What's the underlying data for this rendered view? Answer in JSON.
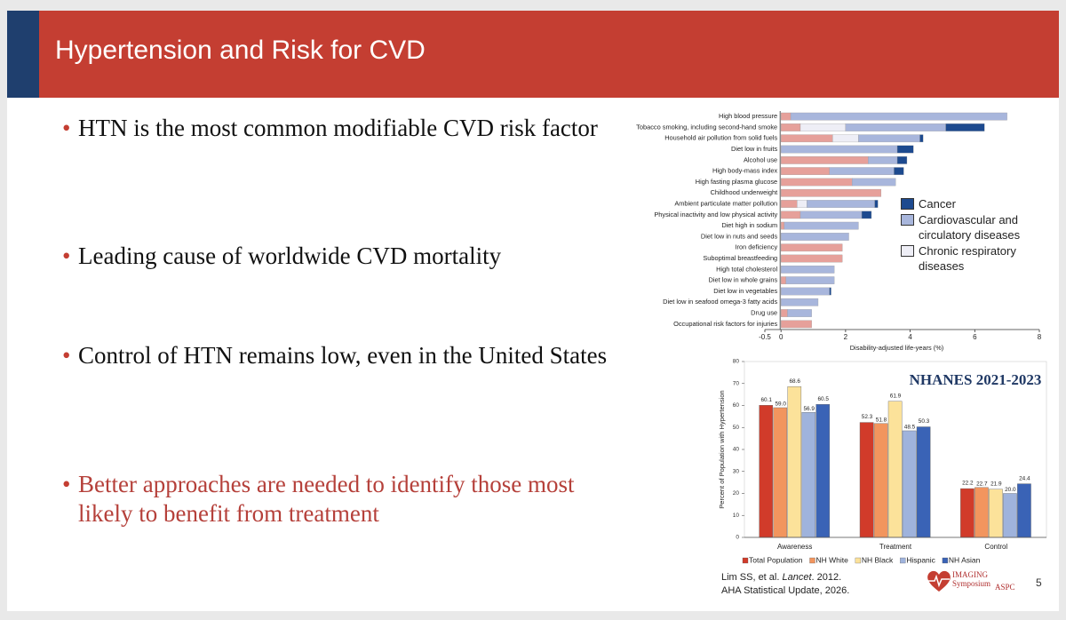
{
  "header": {
    "title": "Hypertension and Risk for CVD"
  },
  "bullets": [
    {
      "text": "HTN is the most common modifiable CVD risk factor"
    },
    {
      "text": "Leading cause of worldwide CVD mortality"
    },
    {
      "text": "Control of HTN remains low, even in the United States"
    },
    {
      "text": "Better approaches are needed to identify those most likely to benefit from treatment",
      "emphasis": true
    }
  ],
  "chart_data": [
    {
      "type": "bar",
      "orientation": "horizontal",
      "stacked": true,
      "xlabel": "Disability-adjusted life-years (%)",
      "categories": [
        "High blood pressure",
        "Tobacco smoking, including second-hand smoke",
        "Household air pollution from solid fuels",
        "Diet low in fruits",
        "Alcohol use",
        "High body-mass index",
        "High fasting plasma glucose",
        "Childhood underweight",
        "Ambient particulate matter pollution",
        "Physical inactivity and low physical activity",
        "Diet high in sodium",
        "Diet low in nuts and seeds",
        "Iron deficiency",
        "Suboptimal breastfeeding",
        "High total cholesterol",
        "Diet low in whole grains",
        "Diet low in vegetables",
        "Diet low in seafood omega-3 fatty acids",
        "Drug use",
        "Occupational risk factors for injuries"
      ],
      "series": [
        {
          "color": "#e6a09a",
          "values": [
            0.3,
            0.6,
            1.6,
            0,
            2.7,
            1.5,
            2.2,
            3.1,
            0.5,
            0.6,
            0.1,
            0,
            1.9,
            1.9,
            0,
            0.15,
            0,
            0,
            0.2,
            0.95
          ]
        },
        {
          "name": "Chronic respiratory diseases",
          "color": "#eeeef6",
          "values": [
            0,
            1.4,
            0.8,
            0,
            0,
            0,
            0,
            0,
            0.3,
            0,
            0,
            0,
            0,
            0,
            0,
            0,
            0,
            0,
            0,
            0
          ]
        },
        {
          "name": "Cardiovascular and circulatory diseases",
          "color": "#a8b6dc",
          "values": [
            6.7,
            3.1,
            1.9,
            3.6,
            0.9,
            2.0,
            1.35,
            0,
            2.1,
            1.9,
            2.3,
            2.1,
            0,
            0,
            1.65,
            1.5,
            1.5,
            1.15,
            0.75,
            0
          ]
        },
        {
          "name": "Cancer",
          "color": "#1d4a8f",
          "values": [
            0,
            1.2,
            0.1,
            0.5,
            0.3,
            0.3,
            0,
            0,
            0.1,
            0.3,
            0,
            0,
            0,
            0,
            0,
            0,
            0.05,
            0,
            0,
            0
          ]
        }
      ],
      "xlim": [
        -0.5,
        8
      ],
      "xticks": [
        -0.5,
        0,
        2,
        4,
        6,
        8
      ],
      "legend": "right"
    },
    {
      "type": "bar",
      "title": "NHANES 2021-2023",
      "ylabel": "Percent of Population with Hypertension",
      "categories": [
        "Awareness",
        "Treatment",
        "Control"
      ],
      "series": [
        {
          "name": "Total Population",
          "color": "#d13b2a",
          "values": [
            60.1,
            52.3,
            22.2
          ],
          "value_labels": [
            "60.1",
            "52.3",
            "22.2"
          ]
        },
        {
          "name": "NH White",
          "color": "#f2955e",
          "values": [
            59.0,
            51.8,
            22.7
          ],
          "value_labels": [
            "59.0",
            "51.8",
            "22.7"
          ]
        },
        {
          "name": "NH Black",
          "color": "#fce29a",
          "values": [
            68.6,
            61.9,
            21.9
          ],
          "value_labels": [
            "68.6",
            "61.9",
            "21.9"
          ]
        },
        {
          "name": "Hispanic",
          "color": "#9fb3dc",
          "values": [
            56.9,
            48.5,
            20.0
          ],
          "value_labels": [
            "56.9",
            "48.5",
            "20.0"
          ]
        },
        {
          "name": "NH Asian",
          "color": "#3a63b6",
          "values": [
            60.5,
            50.3,
            24.4
          ],
          "value_labels": [
            "60.5",
            "50.3",
            "24.4"
          ]
        }
      ],
      "ylim": [
        0,
        80
      ],
      "yticks": [
        0,
        10,
        20,
        30,
        40,
        50,
        60,
        70,
        80
      ],
      "legend": "bottom"
    }
  ],
  "citation": {
    "line1": [
      "Lim SS, et al.",
      "Lancet",
      ". 2012."
    ],
    "line2": "AHA Statistical Update, 2026."
  },
  "logo": {
    "name": "IMAGING Symposium",
    "org": "ASPC"
  },
  "page_number": 5
}
